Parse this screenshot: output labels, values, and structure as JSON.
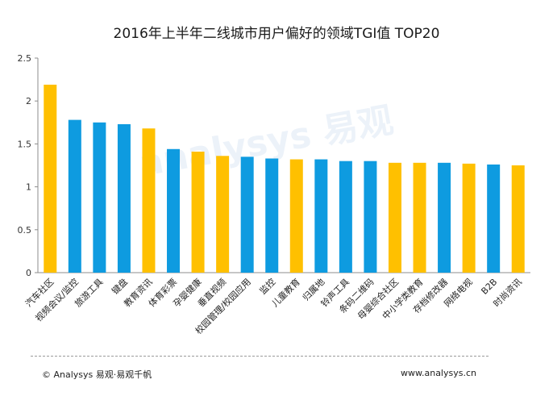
{
  "chart_data": {
    "type": "bar",
    "title": "2016年上半年二线城市用户偏好的领域TGI值 TOP20",
    "xlabel": "",
    "ylabel": "",
    "ylim": [
      0,
      2.5
    ],
    "yticks": [
      "0",
      "0.5",
      "1",
      "1.5",
      "2",
      "2.5"
    ],
    "grid": false,
    "categories": [
      "汽车社区",
      "视频会议/监控",
      "旅游工具",
      "键盘",
      "教育资讯",
      "体育彩票",
      "孕婴健康",
      "垂直视频",
      "校园管理/校园应用",
      "监控",
      "儿童教育",
      "归属地",
      "铃声工具",
      "条码二维码",
      "母婴综合社区",
      "中小学类教育",
      "存档修改器",
      "网络电视",
      "B2B",
      "时尚资讯"
    ],
    "values": [
      2.19,
      1.78,
      1.75,
      1.73,
      1.68,
      1.44,
      1.41,
      1.36,
      1.35,
      1.33,
      1.32,
      1.32,
      1.3,
      1.3,
      1.28,
      1.28,
      1.28,
      1.27,
      1.26,
      1.25
    ],
    "bar_colors": [
      "#FFC000",
      "#0E9BE0",
      "#0E9BE0",
      "#0E9BE0",
      "#FFC000",
      "#0E9BE0",
      "#FFC000",
      "#FFC000",
      "#0E9BE0",
      "#0E9BE0",
      "#FFC000",
      "#0E9BE0",
      "#0E9BE0",
      "#0E9BE0",
      "#FFC000",
      "#FFC000",
      "#0E9BE0",
      "#FFC000",
      "#0E9BE0",
      "#FFC000"
    ]
  },
  "footer": {
    "source": "© Analysys 易观·易观千帆",
    "website": "www.analysys.cn"
  },
  "watermark": "analysys 易观"
}
